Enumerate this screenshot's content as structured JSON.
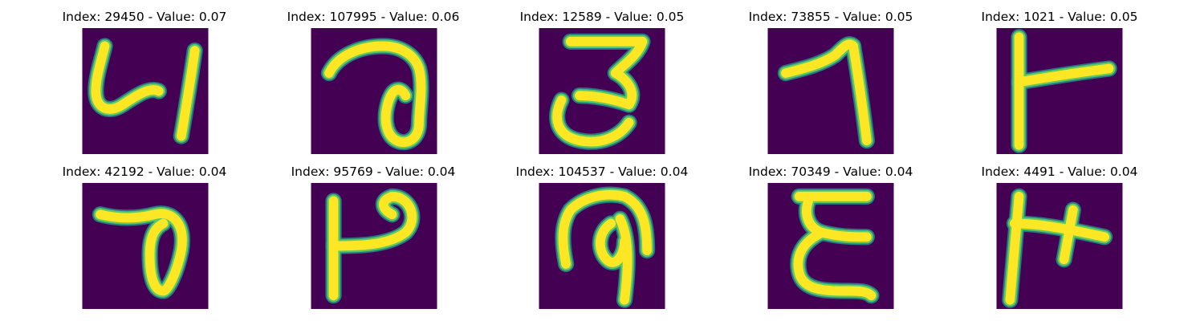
{
  "colors": {
    "background": "#440154",
    "stroke_core": "#fde725",
    "stroke_mid": "#5ec962",
    "stroke_edge": "#21918c"
  },
  "samples": [
    {
      "title": "Index: 29450 - Value: 0.07",
      "glyph": "hook-four"
    },
    {
      "title": "Index: 107995 - Value: 0.06",
      "glyph": "loop-seven"
    },
    {
      "title": "Index: 12589 - Value: 0.05",
      "glyph": "three"
    },
    {
      "title": "Index: 73855 - Value: 0.05",
      "glyph": "seven"
    },
    {
      "title": "Index: 1021 - Value: 0.05",
      "glyph": "tee-right"
    },
    {
      "title": "Index: 42192 - Value: 0.04",
      "glyph": "loop-p"
    },
    {
      "title": "Index: 95769 - Value: 0.04",
      "glyph": "bar-p"
    },
    {
      "title": "Index: 104537 - Value: 0.04",
      "glyph": "arch-loop"
    },
    {
      "title": "Index: 70349 - Value: 0.04",
      "glyph": "epsilon"
    },
    {
      "title": "Index: 4491 - Value: 0.04",
      "glyph": "double-tee"
    }
  ]
}
